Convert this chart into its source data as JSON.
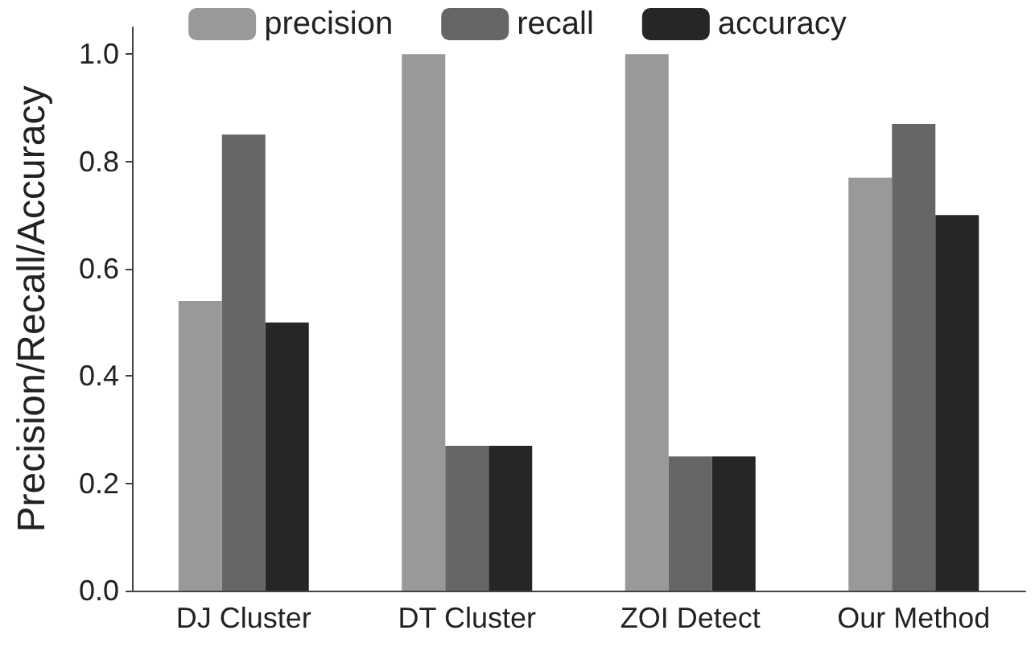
{
  "chart_data": {
    "type": "bar",
    "categories": [
      "DJ Cluster",
      "DT Cluster",
      "ZOI Detect",
      "Our Method"
    ],
    "series": [
      {
        "name": "precision",
        "color": "#999999",
        "values": [
          0.54,
          1.0,
          1.0,
          0.77
        ]
      },
      {
        "name": "recall",
        "color": "#666666",
        "values": [
          0.85,
          0.27,
          0.25,
          0.87
        ]
      },
      {
        "name": "accuracy",
        "color": "#262626",
        "values": [
          0.5,
          0.27,
          0.25,
          0.7
        ]
      }
    ],
    "ylabel": "Precision/Recall/Accuracy",
    "ylim": [
      0,
      1.05
    ],
    "yticks": [
      {
        "value": 0,
        "label": "0.0"
      },
      {
        "value": 0.2,
        "label": "0.2"
      },
      {
        "value": 0.4,
        "label": "0.4"
      },
      {
        "value": 0.6,
        "label": "0.6"
      },
      {
        "value": 0.8,
        "label": "0.8"
      },
      {
        "value": 1.0,
        "label": "1.0"
      }
    ],
    "grid": false,
    "legend": "top"
  }
}
